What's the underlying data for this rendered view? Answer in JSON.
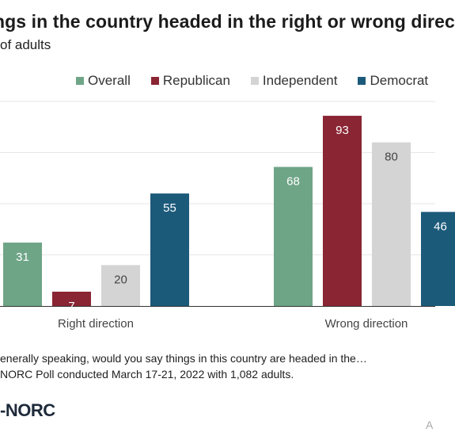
{
  "title": "ngs in the country headed in the right or wrong direc",
  "subtitle": "of adults",
  "question": "enerally speaking, would you say things in this country are headed in the…",
  "source": "NORC Poll conducted March 17-21, 2022 with 1,082 adults.",
  "logo_text": "-NORC",
  "corner_text": "A",
  "colors": {
    "Overall": "#6ea587",
    "Republican": "#8a2533",
    "Independent": "#d4d4d4",
    "Democrat": "#1c5a7a"
  },
  "chart_data": {
    "type": "bar",
    "categories": [
      "Right direction",
      "Wrong direction"
    ],
    "series": [
      {
        "name": "Overall",
        "values": [
          31,
          68
        ]
      },
      {
        "name": "Republican",
        "values": [
          7,
          93
        ]
      },
      {
        "name": "Independent",
        "values": [
          20,
          80
        ]
      },
      {
        "name": "Democrat",
        "values": [
          55,
          46
        ]
      }
    ],
    "ylim": [
      0,
      100
    ],
    "grid": true,
    "legend": "top"
  }
}
